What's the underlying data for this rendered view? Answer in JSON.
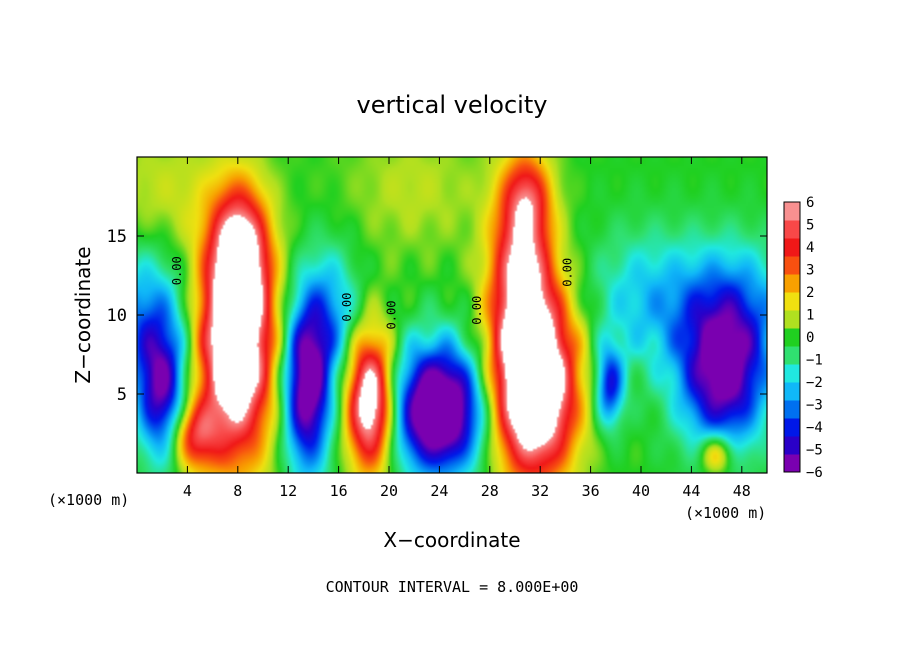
{
  "chart_data": {
    "type": "heatmap",
    "title": "vertical velocity",
    "xlabel": "X−coordinate",
    "ylabel": "Z−coordinate",
    "x_unit_label": "(×1000 m)",
    "x_unit_label_right": "(×1000 m)",
    "footer": "CONTOUR INTERVAL = 8.000E+00",
    "xlim": [
      0,
      50
    ],
    "ylim": [
      0,
      20
    ],
    "x_ticks": [
      4,
      8,
      12,
      16,
      20,
      24,
      28,
      32,
      36,
      40,
      44,
      48
    ],
    "x_tick_labels": [
      "4",
      "8",
      "12",
      "16",
      "20",
      "24",
      "28",
      "32",
      "36",
      "40",
      "44",
      "48"
    ],
    "y_ticks": [
      5,
      10,
      15
    ],
    "y_tick_labels": [
      "5",
      "10",
      "15"
    ],
    "colorbar": {
      "min": -6,
      "max": 6,
      "tick_values": [
        6,
        5,
        4,
        3,
        2,
        1,
        0,
        -1,
        -2,
        -3,
        -4,
        -5,
        -6
      ],
      "tick_labels": [
        "6",
        "5",
        "4",
        "3",
        "2",
        "1",
        "0",
        "−1",
        "−2",
        "−3",
        "−4",
        "−5",
        "−6"
      ],
      "colors": [
        "#7a00b0",
        "#2a00c8",
        "#0018e8",
        "#0070f0",
        "#10b8f8",
        "#20e8e0",
        "#30e070",
        "#20d020",
        "#b0e020",
        "#f0e010",
        "#f8a000",
        "#f85010",
        "#f01818",
        "#f84848",
        "#f89090"
      ]
    },
    "contour_labels": [
      {
        "x": 3.5,
        "y": 12.8,
        "text": "0.00"
      },
      {
        "x": 17.0,
        "y": 10.5,
        "text": "0.00"
      },
      {
        "x": 20.5,
        "y": 10.0,
        "text": "0.00"
      },
      {
        "x": 27.3,
        "y": 10.3,
        "text": "0.00"
      },
      {
        "x": 34.5,
        "y": 12.7,
        "text": "0.00"
      }
    ],
    "series": [
      {
        "x": 2.0,
        "z": 5.0,
        "amp": -5.0,
        "sx": 1.3,
        "sz": 3.0
      },
      {
        "x": 0.6,
        "z": 9.5,
        "amp": -3.2,
        "sx": 2.5,
        "sz": 3.5
      },
      {
        "x": 7.8,
        "z": 8.0,
        "amp": 9.0,
        "sx": 2.1,
        "sz": 5.0
      },
      {
        "x": 8.2,
        "z": 14.0,
        "amp": 5.0,
        "sx": 1.5,
        "sz": 2.8
      },
      {
        "x": 4.5,
        "z": 2.3,
        "amp": 4.0,
        "sx": 1.3,
        "sz": 1.5
      },
      {
        "x": 13.5,
        "z": 5.5,
        "amp": -7.0,
        "sx": 1.3,
        "sz": 3.8
      },
      {
        "x": 15.5,
        "z": 10.0,
        "amp": -2.6,
        "sx": 1.6,
        "sz": 3.0
      },
      {
        "x": 18.5,
        "z": 4.5,
        "amp": 8.0,
        "sx": 1.3,
        "sz": 3.0
      },
      {
        "x": 24.0,
        "z": 4.0,
        "amp": -8.5,
        "sx": 2.5,
        "sz": 2.8
      },
      {
        "x": 31.5,
        "z": 5.5,
        "amp": 10.0,
        "sx": 2.3,
        "sz": 4.0
      },
      {
        "x": 30.5,
        "z": 13.0,
        "amp": 5.5,
        "sx": 1.7,
        "sz": 4.0
      },
      {
        "x": 31.0,
        "z": 17.5,
        "amp": 3.0,
        "sx": 1.3,
        "sz": 2.0
      },
      {
        "x": 37.5,
        "z": 5.5,
        "amp": -4.5,
        "sx": 0.8,
        "sz": 1.8
      },
      {
        "x": 46.5,
        "z": 6.0,
        "amp": -6.0,
        "sx": 2.4,
        "sz": 3.2
      },
      {
        "x": 46.0,
        "z": 1.2,
        "amp": 3.5,
        "sx": 0.9,
        "sz": 0.9
      },
      {
        "x": 47.0,
        "z": 10.5,
        "amp": -3.0,
        "sx": 3.5,
        "sz": 3.0
      },
      {
        "x": 40.0,
        "z": 11.0,
        "amp": -2.0,
        "sx": 3.0,
        "sz": 3.0
      },
      {
        "x": 2.0,
        "z": 17.5,
        "amp": 1.2,
        "sx": 4.0,
        "sz": 3.0
      },
      {
        "x": 22.0,
        "z": 18.0,
        "amp": 1.0,
        "sx": 4.0,
        "sz": 3.0
      }
    ]
  }
}
